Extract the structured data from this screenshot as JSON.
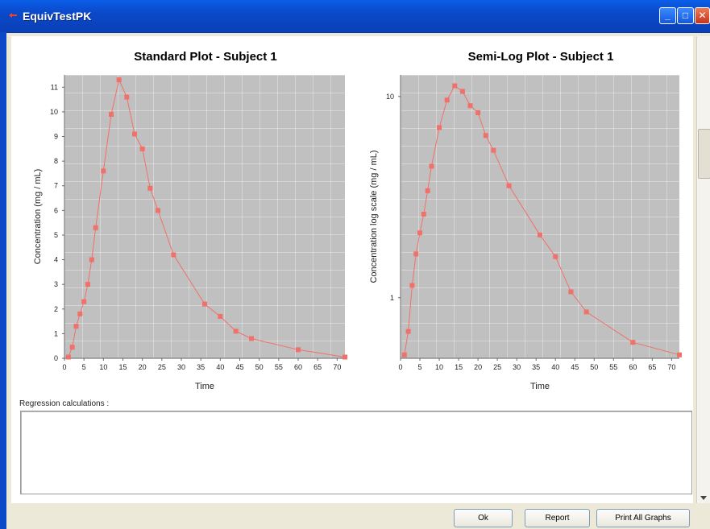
{
  "window": {
    "title": "EquivTestPK"
  },
  "regression": {
    "label": "Regression calculations :",
    "content": ""
  },
  "buttons": {
    "ok": "Ok",
    "report": "Report",
    "print_all": "Print All Graphs"
  },
  "colors": {
    "series": "#f0706a",
    "plot_bg": "#c0c0c0",
    "titlebar": "#0b49c9"
  },
  "icons": {
    "app": "app-icon",
    "minimize": "minimize-icon",
    "maximize": "maximize-icon",
    "close": "close-icon"
  },
  "chart_data": [
    {
      "type": "line",
      "title": "Standard Plot - Subject 1",
      "xlabel": "Time",
      "ylabel": "Concentration (mg / mL)",
      "xlim": [
        0,
        72
      ],
      "ylim": [
        0,
        11.5
      ],
      "x_ticks": [
        0,
        5,
        10,
        15,
        20,
        25,
        30,
        35,
        40,
        45,
        50,
        55,
        60,
        65,
        70
      ],
      "y_ticks": [
        0,
        1,
        2,
        3,
        4,
        5,
        6,
        7,
        8,
        9,
        10,
        11
      ],
      "grid": true,
      "series": [
        {
          "x": [
            1,
            2,
            3,
            4,
            5,
            6,
            7,
            8,
            10,
            12,
            14,
            16,
            18,
            20,
            22,
            24,
            28,
            36,
            40,
            44,
            48,
            60,
            72
          ],
          "y": [
            0.05,
            0.45,
            1.3,
            1.8,
            2.3,
            3.0,
            4.0,
            5.3,
            7.6,
            9.9,
            11.3,
            10.6,
            9.1,
            8.5,
            6.9,
            6.0,
            4.2,
            2.2,
            1.7,
            1.1,
            0.8,
            0.35,
            0.05
          ]
        }
      ]
    },
    {
      "type": "line",
      "title": "Semi-Log Plot - Subject 1",
      "xlabel": "Time",
      "ylabel": "Concentration log scale (mg / mL)",
      "xlim": [
        0,
        72
      ],
      "ylim": [
        0.5,
        12.8
      ],
      "yscale": "log",
      "x_ticks": [
        0,
        5,
        10,
        15,
        20,
        25,
        30,
        35,
        40,
        45,
        50,
        55,
        60,
        65,
        70
      ],
      "y_ticks": [
        1,
        10
      ],
      "grid": true,
      "series": [
        {
          "x": [
            1,
            2,
            3,
            4,
            5,
            6,
            7,
            8,
            10,
            12,
            14,
            16,
            18,
            20,
            22,
            24,
            28,
            36,
            40,
            44,
            48,
            60,
            72
          ],
          "y": [
            0.52,
            0.68,
            1.15,
            1.65,
            2.1,
            2.6,
            3.4,
            4.5,
            7.0,
            9.6,
            11.3,
            10.6,
            9.0,
            8.3,
            6.4,
            5.4,
            3.6,
            2.05,
            1.6,
            1.07,
            0.85,
            0.6,
            0.52
          ]
        }
      ]
    }
  ]
}
